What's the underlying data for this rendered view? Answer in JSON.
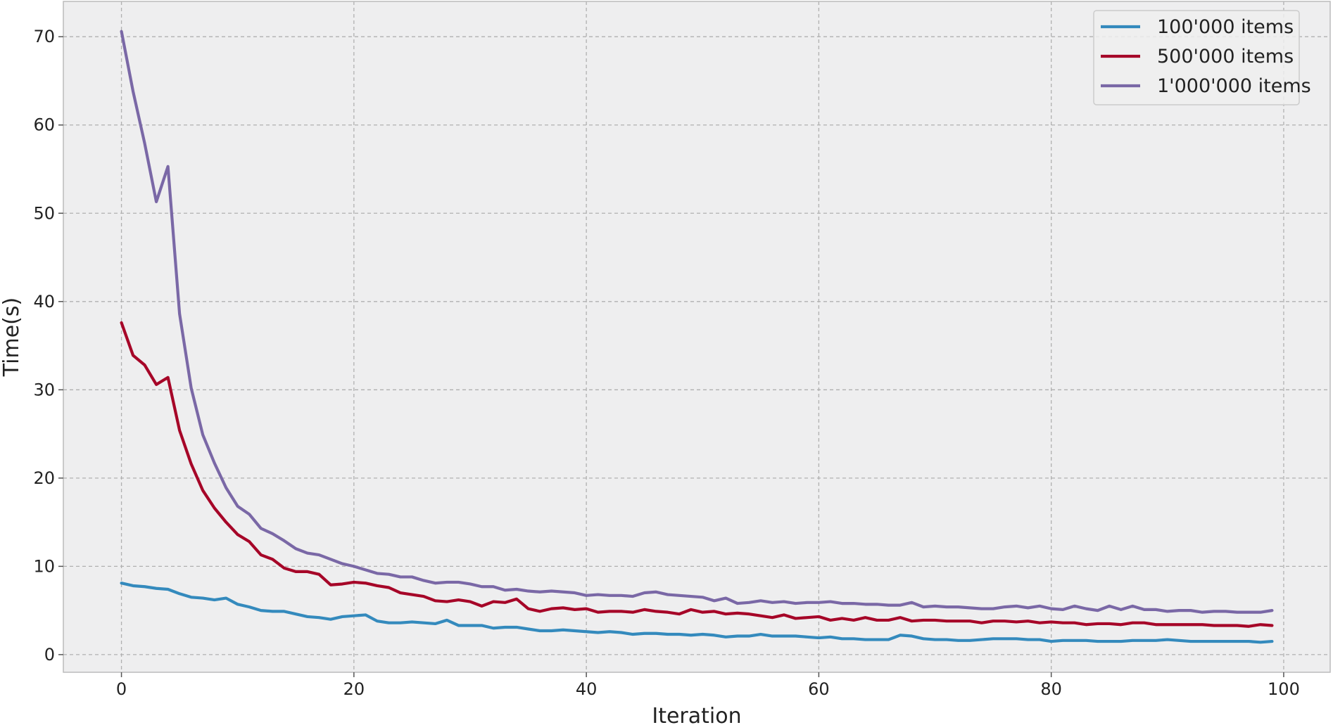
{
  "chart_data": {
    "type": "line",
    "title": "",
    "xlabel": "Iteration",
    "ylabel": "Time(s)",
    "xlim": [
      -5,
      104
    ],
    "ylim": [
      -2,
      74
    ],
    "xticks": [
      0,
      20,
      40,
      60,
      80,
      100
    ],
    "yticks": [
      0,
      10,
      20,
      30,
      40,
      50,
      60,
      70
    ],
    "grid": true,
    "legend_position": "top-right",
    "colors": {
      "background": "#eeeeef",
      "frame": "#bcbcbc"
    },
    "series": [
      {
        "name": "100'000 items",
        "color": "#348abd",
        "values": [
          8.1,
          7.8,
          7.7,
          7.5,
          7.4,
          6.9,
          6.5,
          6.4,
          6.2,
          6.4,
          5.7,
          5.4,
          5.0,
          4.9,
          4.9,
          4.6,
          4.3,
          4.2,
          4.0,
          4.3,
          4.4,
          4.5,
          3.8,
          3.6,
          3.6,
          3.7,
          3.6,
          3.5,
          3.9,
          3.3,
          3.3,
          3.3,
          3.0,
          3.1,
          3.1,
          2.9,
          2.7,
          2.7,
          2.8,
          2.7,
          2.6,
          2.5,
          2.6,
          2.5,
          2.3,
          2.4,
          2.4,
          2.3,
          2.3,
          2.2,
          2.3,
          2.2,
          2.0,
          2.1,
          2.1,
          2.3,
          2.1,
          2.1,
          2.1,
          2.0,
          1.9,
          2.0,
          1.8,
          1.8,
          1.7,
          1.7,
          1.7,
          2.2,
          2.1,
          1.8,
          1.7,
          1.7,
          1.6,
          1.6,
          1.7,
          1.8,
          1.8,
          1.8,
          1.7,
          1.7,
          1.5,
          1.6,
          1.6,
          1.6,
          1.5,
          1.5,
          1.5,
          1.6,
          1.6,
          1.6,
          1.7,
          1.6,
          1.5,
          1.5,
          1.5,
          1.5,
          1.5,
          1.5,
          1.4,
          1.5
        ]
      },
      {
        "name": "500'000 items",
        "color": "#a60628",
        "values": [
          37.6,
          33.9,
          32.8,
          30.6,
          31.4,
          25.4,
          21.6,
          18.6,
          16.6,
          15.0,
          13.6,
          12.8,
          11.3,
          10.8,
          9.8,
          9.4,
          9.4,
          9.1,
          7.9,
          8.0,
          8.2,
          8.1,
          7.8,
          7.6,
          7.0,
          6.8,
          6.6,
          6.1,
          6.0,
          6.2,
          6.0,
          5.5,
          6.0,
          5.9,
          6.3,
          5.2,
          4.9,
          5.2,
          5.3,
          5.1,
          5.2,
          4.8,
          4.9,
          4.9,
          4.8,
          5.1,
          4.9,
          4.8,
          4.6,
          5.1,
          4.8,
          4.9,
          4.6,
          4.7,
          4.6,
          4.4,
          4.2,
          4.5,
          4.1,
          4.2,
          4.3,
          3.9,
          4.1,
          3.9,
          4.2,
          3.9,
          3.9,
          4.2,
          3.8,
          3.9,
          3.9,
          3.8,
          3.8,
          3.8,
          3.6,
          3.8,
          3.8,
          3.7,
          3.8,
          3.6,
          3.7,
          3.6,
          3.6,
          3.4,
          3.5,
          3.5,
          3.4,
          3.6,
          3.6,
          3.4,
          3.4,
          3.4,
          3.4,
          3.4,
          3.3,
          3.3,
          3.3,
          3.2,
          3.4,
          3.3
        ]
      },
      {
        "name": "1'000'000 items",
        "color": "#7a68a6",
        "values": [
          70.6,
          63.8,
          57.9,
          51.3,
          55.3,
          38.6,
          30.2,
          24.9,
          21.7,
          18.9,
          16.8,
          15.9,
          14.3,
          13.7,
          12.9,
          12.0,
          11.5,
          11.3,
          10.8,
          10.3,
          10.0,
          9.6,
          9.2,
          9.1,
          8.8,
          8.8,
          8.4,
          8.1,
          8.2,
          8.2,
          8.0,
          7.7,
          7.7,
          7.3,
          7.4,
          7.2,
          7.1,
          7.2,
          7.1,
          7.0,
          6.7,
          6.8,
          6.7,
          6.7,
          6.6,
          7.0,
          7.1,
          6.8,
          6.7,
          6.6,
          6.5,
          6.1,
          6.4,
          5.8,
          5.9,
          6.1,
          5.9,
          6.0,
          5.8,
          5.9,
          5.9,
          6.0,
          5.8,
          5.8,
          5.7,
          5.7,
          5.6,
          5.6,
          5.9,
          5.4,
          5.5,
          5.4,
          5.4,
          5.3,
          5.2,
          5.2,
          5.4,
          5.5,
          5.3,
          5.5,
          5.2,
          5.1,
          5.5,
          5.2,
          5.0,
          5.5,
          5.1,
          5.5,
          5.1,
          5.1,
          4.9,
          5.0,
          5.0,
          4.8,
          4.9,
          4.9,
          4.8,
          4.8,
          4.8,
          5.0
        ]
      }
    ]
  }
}
